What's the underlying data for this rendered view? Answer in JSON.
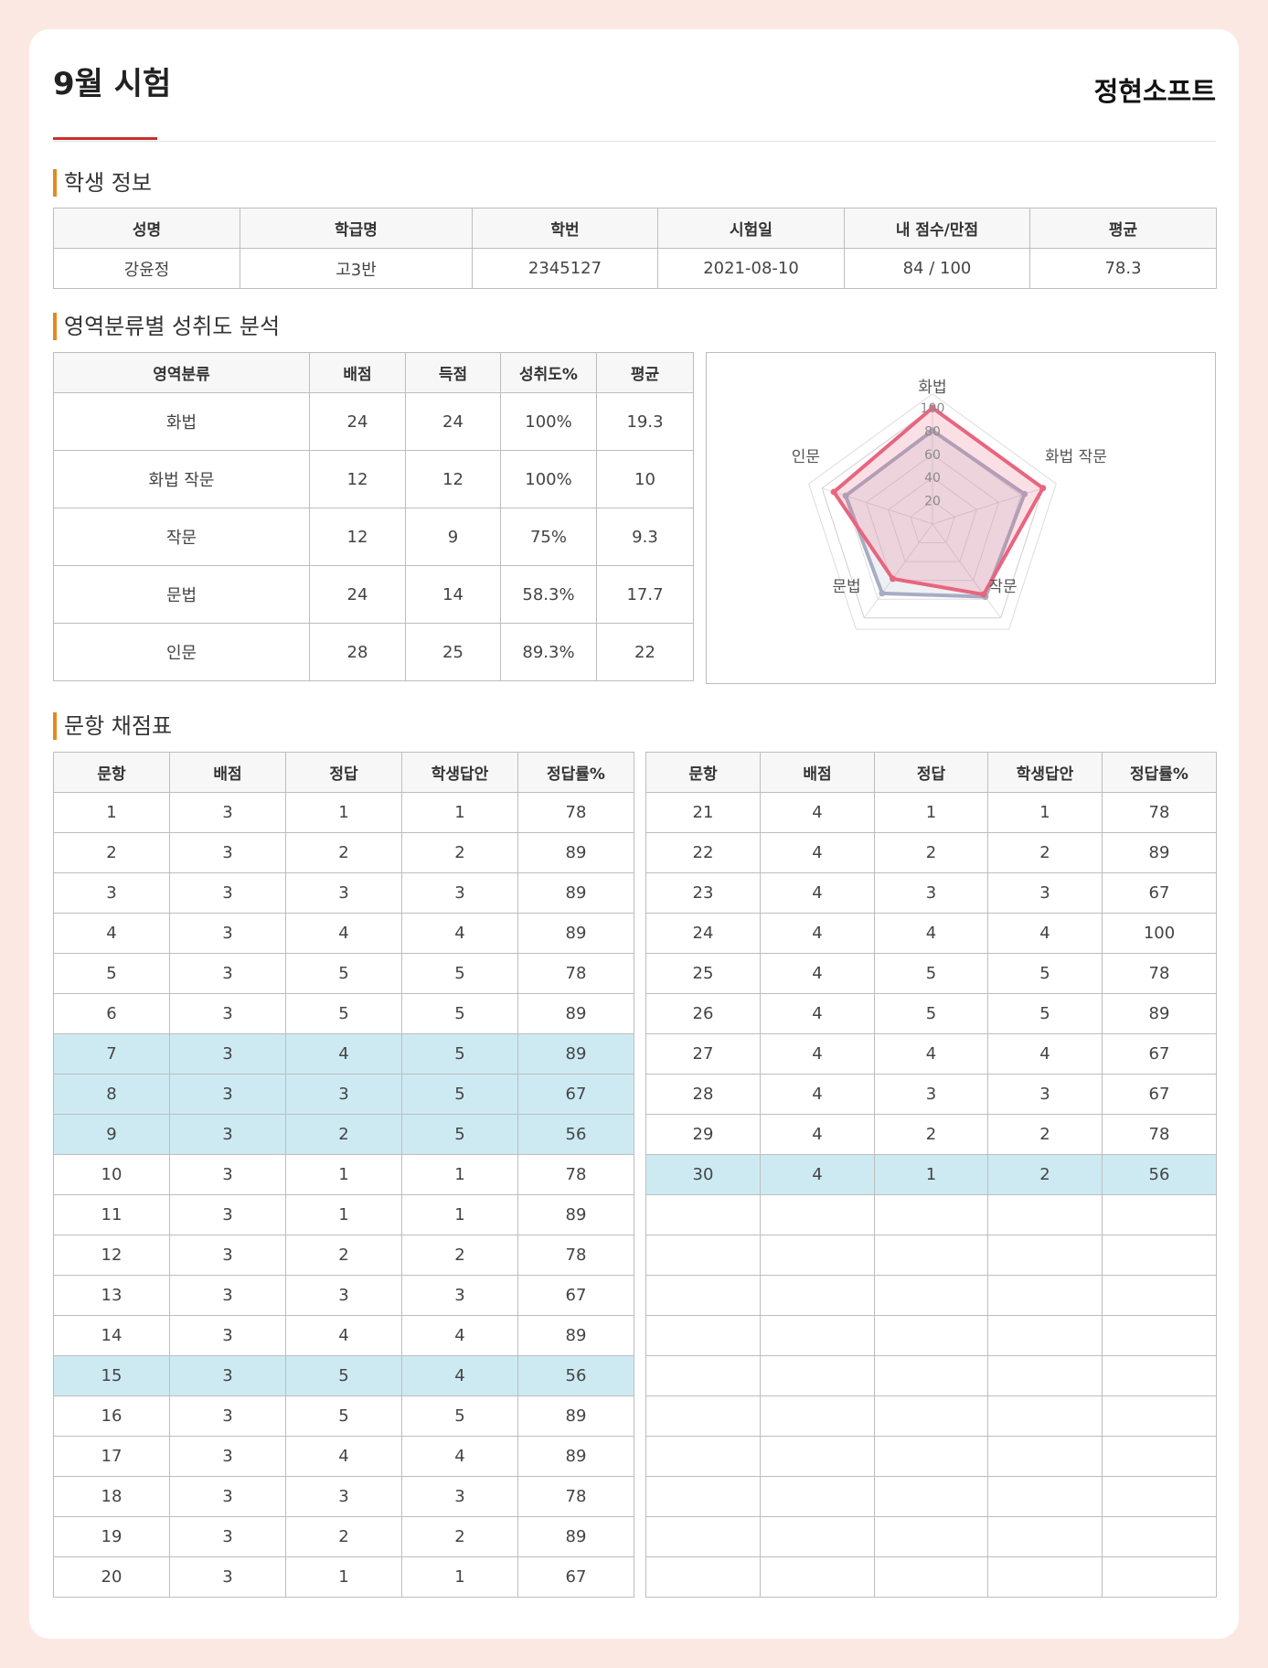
{
  "header": {
    "title": "9월 시험",
    "company": "정현소프트"
  },
  "student_section": {
    "title": "학생 정보",
    "columns": [
      "성명",
      "학급명",
      "학번",
      "시험일",
      "내 점수/만점",
      "평균"
    ],
    "row": [
      "강윤정",
      "고3반",
      "2345127",
      "2021-08-10",
      "84 / 100",
      "78.3"
    ]
  },
  "area_section": {
    "title": "영역분류별 성취도 분석",
    "columns": [
      "영역분류",
      "배점",
      "득점",
      "성취도%",
      "평균"
    ],
    "rows": [
      [
        "화법",
        "24",
        "24",
        "100%",
        "19.3"
      ],
      [
        "화법 작문",
        "12",
        "12",
        "100%",
        "10"
      ],
      [
        "작문",
        "12",
        "9",
        "75%",
        "9.3"
      ],
      [
        "문법",
        "24",
        "14",
        "58.3%",
        "17.7"
      ],
      [
        "인문",
        "28",
        "25",
        "89.3%",
        "22"
      ]
    ]
  },
  "chart_data": {
    "type": "radar",
    "axes": [
      "화법",
      "화법  작문",
      "작문",
      "문법",
      "인문"
    ],
    "ticks": [
      "20",
      "40",
      "60",
      "80",
      "100"
    ],
    "rmax": 100,
    "series": [
      {
        "values": [
          100,
          100,
          75,
          58.3,
          89.3
        ],
        "color": "#e8657f"
      },
      {
        "values": [
          80.4,
          83.3,
          77.5,
          73.8,
          78.6
        ],
        "color": "#a8adc4"
      }
    ]
  },
  "grading_section": {
    "title": "문항 채점표",
    "columns": [
      "문항",
      "배점",
      "정답",
      "학생답안",
      "정답률%"
    ],
    "left": [
      [
        "1",
        "3",
        "1",
        "1",
        "78"
      ],
      [
        "2",
        "3",
        "2",
        "2",
        "89"
      ],
      [
        "3",
        "3",
        "3",
        "3",
        "89"
      ],
      [
        "4",
        "3",
        "4",
        "4",
        "89"
      ],
      [
        "5",
        "3",
        "5",
        "5",
        "78"
      ],
      [
        "6",
        "3",
        "5",
        "5",
        "89"
      ],
      [
        "7",
        "3",
        "4",
        "5",
        "89"
      ],
      [
        "8",
        "3",
        "3",
        "5",
        "67"
      ],
      [
        "9",
        "3",
        "2",
        "5",
        "56"
      ],
      [
        "10",
        "3",
        "1",
        "1",
        "78"
      ],
      [
        "11",
        "3",
        "1",
        "1",
        "89"
      ],
      [
        "12",
        "3",
        "2",
        "2",
        "78"
      ],
      [
        "13",
        "3",
        "3",
        "3",
        "67"
      ],
      [
        "14",
        "3",
        "4",
        "4",
        "89"
      ],
      [
        "15",
        "3",
        "5",
        "4",
        "56"
      ],
      [
        "16",
        "3",
        "5",
        "5",
        "89"
      ],
      [
        "17",
        "3",
        "4",
        "4",
        "89"
      ],
      [
        "18",
        "3",
        "3",
        "3",
        "78"
      ],
      [
        "19",
        "3",
        "2",
        "2",
        "89"
      ],
      [
        "20",
        "3",
        "1",
        "1",
        "67"
      ]
    ],
    "right": [
      [
        "21",
        "4",
        "1",
        "1",
        "78"
      ],
      [
        "22",
        "4",
        "2",
        "2",
        "89"
      ],
      [
        "23",
        "4",
        "3",
        "3",
        "67"
      ],
      [
        "24",
        "4",
        "4",
        "4",
        "100"
      ],
      [
        "25",
        "4",
        "5",
        "5",
        "78"
      ],
      [
        "26",
        "4",
        "5",
        "5",
        "89"
      ],
      [
        "27",
        "4",
        "4",
        "4",
        "67"
      ],
      [
        "28",
        "4",
        "3",
        "3",
        "67"
      ],
      [
        "29",
        "4",
        "2",
        "2",
        "78"
      ],
      [
        "30",
        "4",
        "1",
        "2",
        "56"
      ]
    ],
    "total_rows": 20
  }
}
